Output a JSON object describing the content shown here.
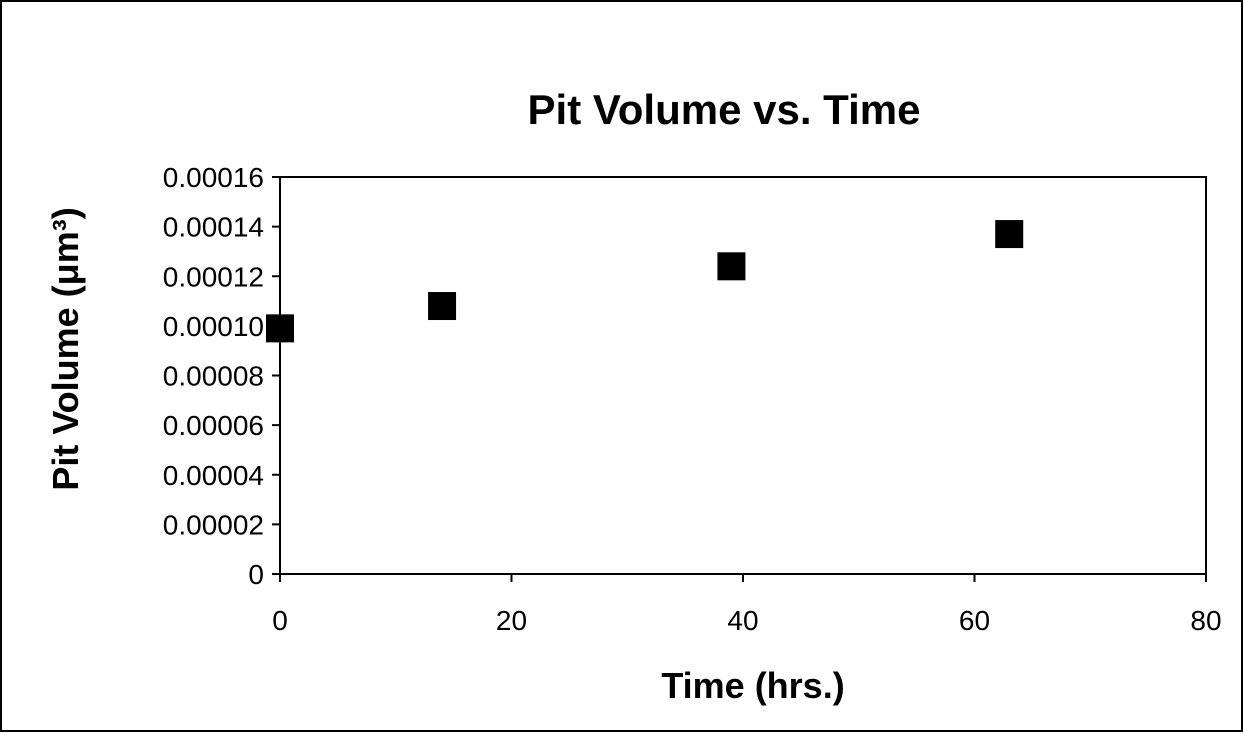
{
  "chart_data": {
    "type": "scatter",
    "title": "Pit Volume vs. Time",
    "xlabel": "Time  (hrs.)",
    "ylabel": "Pit Volume (μm³)",
    "xlim": [
      0,
      80
    ],
    "ylim": [
      0,
      0.00016
    ],
    "xticks": [
      "0",
      "20",
      "40",
      "60",
      "80"
    ],
    "yticks": [
      "0",
      "0.00002",
      "0.00004",
      "0.00006",
      "0.00008",
      "0.00010",
      "0.00012",
      "0.00014",
      "0.00016"
    ],
    "grid": false,
    "legend": "none",
    "marker": "square",
    "marker_color": "#000000",
    "series": [
      {
        "x": [
          0,
          14,
          39,
          63
        ],
        "y": [
          9.9e-05,
          0.000108,
          0.000124,
          0.000137
        ]
      }
    ]
  }
}
